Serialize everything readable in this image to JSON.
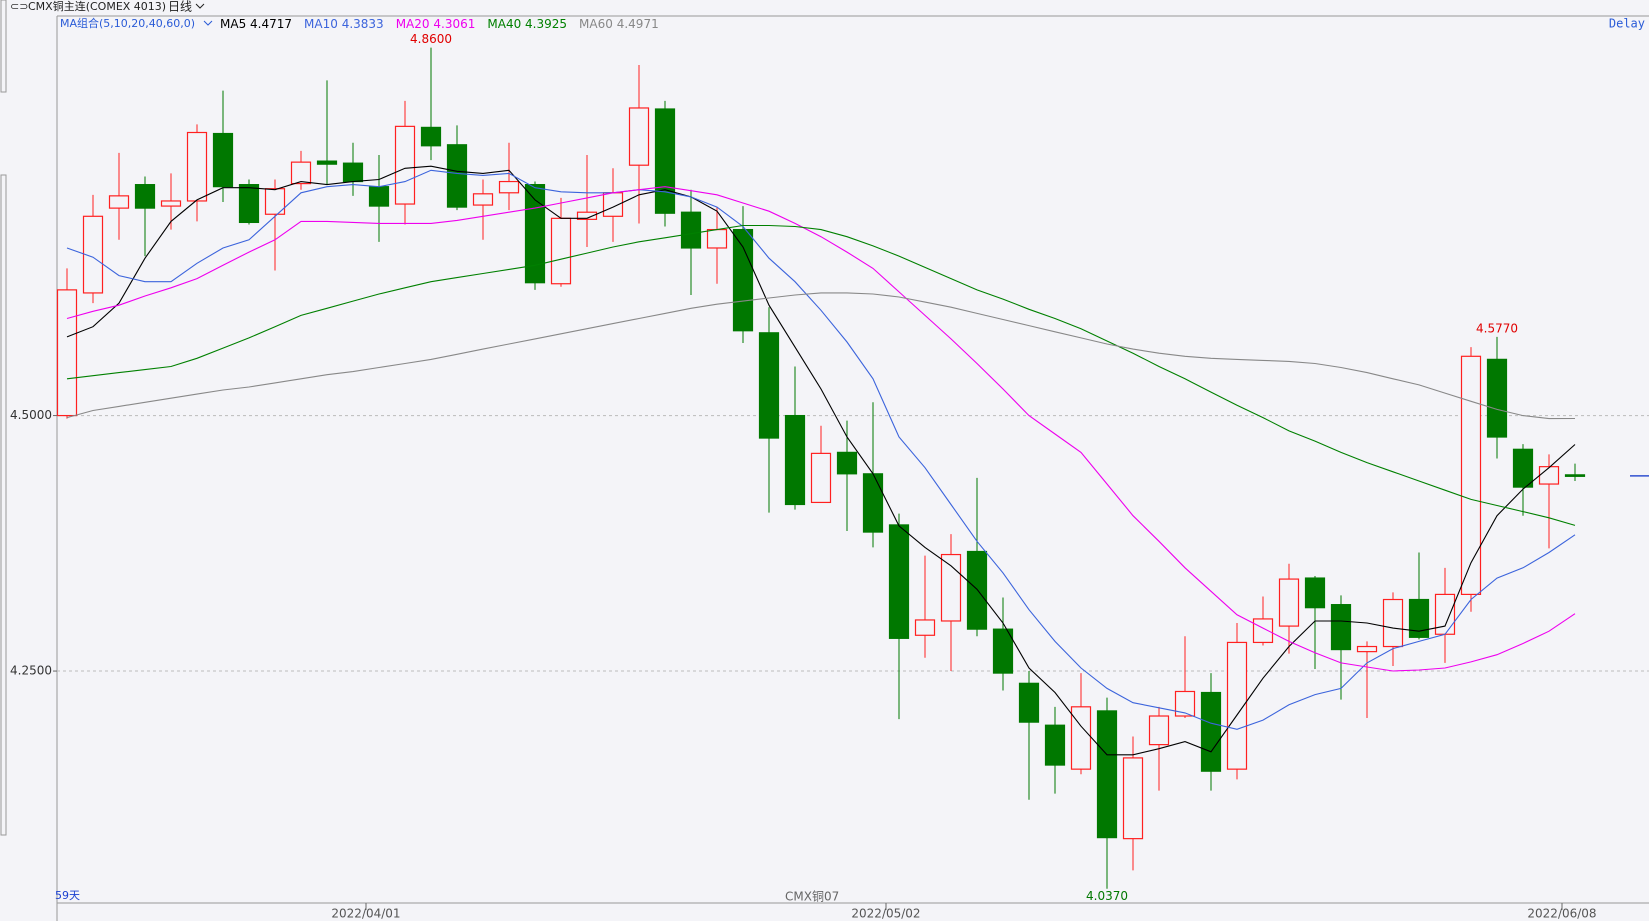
{
  "header": {
    "instrument": "CMX铜主连(COMEX 4013)",
    "period": "日线",
    "ma_group": "MA组合(5,10,20,40,60,0)",
    "delay": "Delay",
    "bar_count": "59天",
    "contract": "CMX铜07"
  },
  "chart_data": {
    "type": "candlestick",
    "categories": [
      null,
      null,
      null,
      null,
      null,
      null,
      null,
      null,
      null,
      null,
      null,
      "2022/04/01",
      null,
      null,
      null,
      null,
      null,
      null,
      null,
      null,
      null,
      null,
      null,
      null,
      null,
      null,
      null,
      null,
      null,
      null,
      null,
      "2022/05/02",
      null,
      null,
      null,
      null,
      null,
      null,
      null,
      null,
      null,
      null,
      null,
      null,
      null,
      null,
      null,
      null,
      null,
      null,
      null,
      null,
      null,
      null,
      null,
      null,
      null,
      "2022/06/08",
      null
    ],
    "open": [
      4.5,
      4.62,
      4.703,
      4.726,
      4.705,
      4.71,
      4.776,
      4.726,
      4.697,
      4.727,
      4.749,
      4.747,
      4.724,
      4.707,
      4.782,
      4.765,
      4.706,
      4.718,
      4.726,
      4.629,
      4.692,
      4.695,
      4.745,
      4.8,
      4.699,
      4.664,
      4.682,
      4.581,
      4.5,
      4.415,
      4.464,
      4.443,
      4.393,
      4.285,
      4.299,
      4.367,
      4.291,
      4.238,
      4.197,
      4.154,
      4.211,
      4.086,
      4.178,
      4.206,
      4.229,
      4.154,
      4.278,
      4.294,
      4.341,
      4.315,
      4.269,
      4.274,
      4.32,
      4.286,
      4.325,
      4.555,
      4.467,
      4.433,
      4.442
    ],
    "high": [
      4.644,
      4.716,
      4.757,
      4.734,
      4.737,
      4.785,
      4.818,
      4.731,
      4.731,
      4.759,
      4.828,
      4.767,
      4.755,
      4.808,
      4.86,
      4.784,
      4.731,
      4.767,
      4.729,
      4.713,
      4.755,
      4.742,
      4.843,
      4.808,
      4.721,
      4.704,
      4.705,
      4.606,
      4.548,
      4.49,
      4.495,
      4.513,
      4.404,
      4.363,
      4.384,
      4.439,
      4.322,
      4.25,
      4.215,
      4.248,
      4.224,
      4.186,
      4.215,
      4.284,
      4.248,
      4.297,
      4.323,
      4.355,
      4.343,
      4.324,
      4.279,
      4.327,
      4.366,
      4.351,
      4.567,
      4.577,
      4.472,
      4.462,
      4.453
    ],
    "low": [
      4.497,
      4.61,
      4.672,
      4.656,
      4.682,
      4.69,
      4.709,
      4.687,
      4.642,
      4.721,
      4.726,
      4.715,
      4.67,
      4.687,
      4.75,
      4.701,
      4.672,
      4.701,
      4.623,
      4.626,
      4.665,
      4.67,
      4.688,
      4.685,
      4.618,
      4.629,
      4.571,
      4.405,
      4.408,
      4.415,
      4.387,
      4.371,
      4.203,
      4.263,
      4.25,
      4.284,
      4.231,
      4.124,
      4.13,
      4.149,
      4.037,
      4.055,
      4.133,
      4.204,
      4.133,
      4.144,
      4.275,
      4.267,
      4.252,
      4.222,
      4.204,
      4.255,
      4.281,
      4.258,
      4.308,
      4.458,
      4.402,
      4.37,
      4.436
    ],
    "close": [
      4.623,
      4.695,
      4.715,
      4.703,
      4.71,
      4.777,
      4.724,
      4.689,
      4.722,
      4.748,
      4.746,
      4.729,
      4.705,
      4.783,
      4.764,
      4.704,
      4.717,
      4.729,
      4.63,
      4.693,
      4.699,
      4.718,
      4.801,
      4.698,
      4.664,
      4.682,
      4.583,
      4.478,
      4.413,
      4.463,
      4.443,
      4.386,
      4.282,
      4.3,
      4.364,
      4.291,
      4.248,
      4.2,
      4.158,
      4.215,
      4.087,
      4.165,
      4.206,
      4.23,
      4.152,
      4.278,
      4.301,
      4.34,
      4.312,
      4.271,
      4.274,
      4.32,
      4.283,
      4.325,
      4.558,
      4.479,
      4.43,
      4.45,
      4.441
    ],
    "up_color": "#ff2020",
    "down_color": "#007800",
    "series": [
      {
        "name": "MA5",
        "color": "#000000",
        "values": [
          4.577,
          4.587,
          4.61,
          4.654,
          4.69,
          4.711,
          4.723,
          4.723,
          4.721,
          4.729,
          4.726,
          4.729,
          4.731,
          4.742,
          4.744,
          4.739,
          4.737,
          4.74,
          4.711,
          4.693,
          4.693,
          4.704,
          4.716,
          4.721,
          4.714,
          4.7,
          4.665,
          4.608,
          4.567,
          4.526,
          4.479,
          4.443,
          4.392,
          4.371,
          4.353,
          4.33,
          4.297,
          4.253,
          4.229,
          4.196,
          4.168,
          4.168,
          4.174,
          4.181,
          4.171,
          4.207,
          4.243,
          4.274,
          4.299,
          4.299,
          4.297,
          4.292,
          4.289,
          4.294,
          4.356,
          4.402,
          4.428,
          4.449,
          4.4717
        ]
      },
      {
        "name": "MA10",
        "color": "#3c64dc",
        "values": [
          4.664,
          4.655,
          4.637,
          4.631,
          4.631,
          4.649,
          4.664,
          4.672,
          4.695,
          4.718,
          4.724,
          4.726,
          4.724,
          4.729,
          4.74,
          4.737,
          4.735,
          4.737,
          4.723,
          4.719,
          4.718,
          4.718,
          4.721,
          4.719,
          4.714,
          4.704,
          4.685,
          4.654,
          4.631,
          4.603,
          4.572,
          4.536,
          4.479,
          4.449,
          4.413,
          4.377,
          4.346,
          4.31,
          4.279,
          4.253,
          4.233,
          4.219,
          4.214,
          4.209,
          4.199,
          4.193,
          4.202,
          4.217,
          4.227,
          4.233,
          4.258,
          4.272,
          4.279,
          4.286,
          4.32,
          4.341,
          4.351,
          4.366,
          4.3833
        ]
      },
      {
        "name": "MA20",
        "color": "#ee00ee",
        "values": [
          4.595,
          4.602,
          4.608,
          4.617,
          4.625,
          4.634,
          4.647,
          4.66,
          4.672,
          4.69,
          4.69,
          4.689,
          4.688,
          4.688,
          4.688,
          4.691,
          4.695,
          4.699,
          4.703,
          4.708,
          4.713,
          4.718,
          4.721,
          4.724,
          4.72,
          4.716,
          4.708,
          4.7,
          4.688,
          4.675,
          4.66,
          4.644,
          4.621,
          4.598,
          4.575,
          4.551,
          4.526,
          4.5,
          4.482,
          4.464,
          4.433,
          4.402,
          4.377,
          4.351,
          4.328,
          4.305,
          4.292,
          4.279,
          4.268,
          4.258,
          4.254,
          4.25,
          4.251,
          4.253,
          4.259,
          4.266,
          4.277,
          4.289,
          4.3061
        ]
      },
      {
        "name": "MA40",
        "color": "#008000",
        "values": [
          4.536,
          4.539,
          4.542,
          4.545,
          4.548,
          4.556,
          4.566,
          4.576,
          4.587,
          4.598,
          4.605,
          4.612,
          4.619,
          4.625,
          4.631,
          4.635,
          4.639,
          4.643,
          4.647,
          4.653,
          4.659,
          4.665,
          4.67,
          4.674,
          4.678,
          4.682,
          4.686,
          4.686,
          4.685,
          4.682,
          4.675,
          4.666,
          4.656,
          4.645,
          4.634,
          4.623,
          4.614,
          4.604,
          4.595,
          4.585,
          4.573,
          4.561,
          4.548,
          4.536,
          4.523,
          4.51,
          4.498,
          4.485,
          4.475,
          4.464,
          4.454,
          4.445,
          4.436,
          4.427,
          4.418,
          4.412,
          4.406,
          4.4,
          4.3925
        ]
      },
      {
        "name": "MA60",
        "color": "#888888",
        "values": [
          4.498,
          4.505,
          4.509,
          4.513,
          4.517,
          4.521,
          4.525,
          4.528,
          4.532,
          4.536,
          4.54,
          4.543,
          4.547,
          4.551,
          4.555,
          4.56,
          4.565,
          4.57,
          4.575,
          4.58,
          4.585,
          4.59,
          4.595,
          4.6,
          4.605,
          4.609,
          4.612,
          4.615,
          4.618,
          4.62,
          4.62,
          4.619,
          4.616,
          4.611,
          4.606,
          4.6,
          4.594,
          4.588,
          4.582,
          4.576,
          4.57,
          4.565,
          4.561,
          4.558,
          4.556,
          4.555,
          4.554,
          4.553,
          4.551,
          4.547,
          4.542,
          4.536,
          4.53,
          4.522,
          4.514,
          4.506,
          4.5,
          4.497,
          4.4971
        ]
      }
    ],
    "annotations": [
      {
        "label": "4.8600",
        "color": "#e00000"
      },
      {
        "label": "4.5770",
        "color": "#e00000"
      },
      {
        "label": "4.0370",
        "color": "#007800"
      }
    ],
    "ylim": [
      4.024,
      4.891
    ],
    "yticks": [
      {
        "value": 4.25,
        "label": "4.2500"
      },
      {
        "value": 4.5,
        "label": "4.5000"
      }
    ],
    "grid": true
  }
}
